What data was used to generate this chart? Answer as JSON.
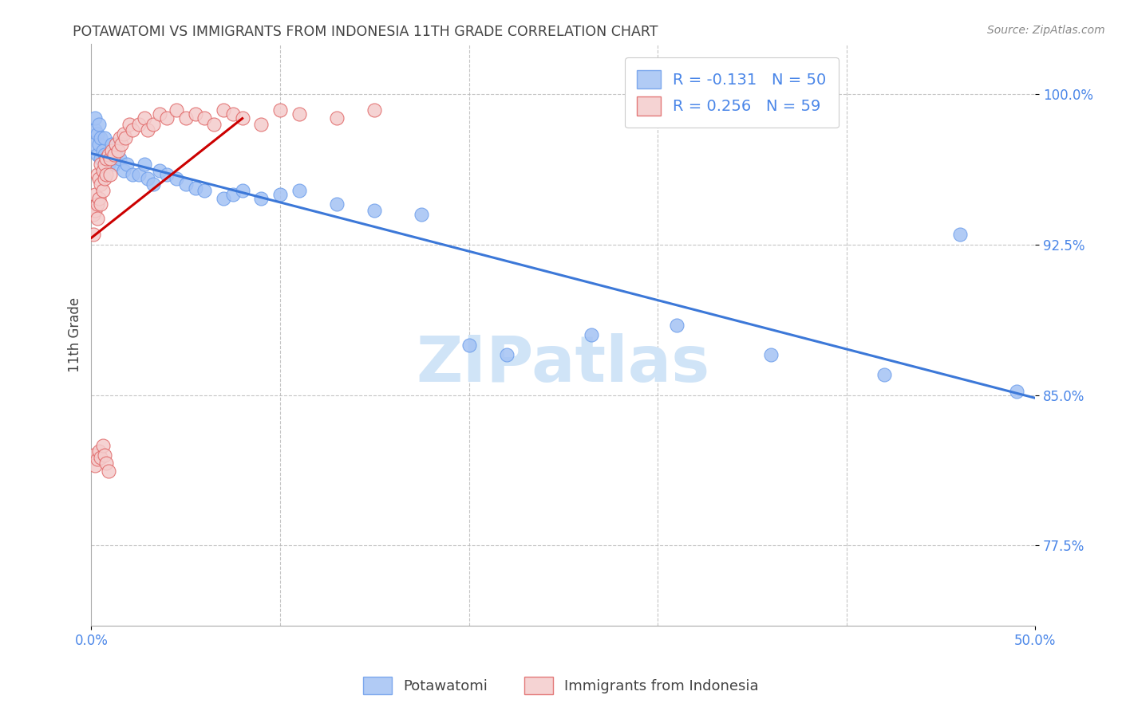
{
  "title": "POTAWATOMI VS IMMIGRANTS FROM INDONESIA 11TH GRADE CORRELATION CHART",
  "source": "Source: ZipAtlas.com",
  "ylabel": "11th Grade",
  "x_min": 0.0,
  "x_max": 0.5,
  "y_min": 0.735,
  "y_max": 1.025,
  "y_ticks": [
    0.775,
    0.85,
    0.925,
    1.0
  ],
  "y_tick_labels": [
    "77.5%",
    "85.0%",
    "92.5%",
    "100.0%"
  ],
  "x_ticks": [
    0.0,
    0.5
  ],
  "x_tick_labels": [
    "0.0%",
    "50.0%"
  ],
  "legend_labels": [
    "Potawatomi",
    "Immigrants from Indonesia"
  ],
  "legend_R": [
    "-0.131",
    "0.256"
  ],
  "legend_N": [
    "50",
    "59"
  ],
  "blue_color": "#a4c2f4",
  "pink_color": "#f4cccc",
  "blue_edge_color": "#6d9eeb",
  "pink_edge_color": "#e06666",
  "blue_line_color": "#3c78d8",
  "pink_line_color": "#cc0000",
  "background_color": "#ffffff",
  "grid_color": "#b7b7b7",
  "legend_text_color": "#4a86e8",
  "title_color": "#434343",
  "watermark_color": "#d0e4f7",
  "blue_scatter_x": [
    0.001,
    0.002,
    0.002,
    0.003,
    0.003,
    0.004,
    0.004,
    0.005,
    0.005,
    0.006,
    0.006,
    0.007,
    0.007,
    0.008,
    0.009,
    0.01,
    0.011,
    0.012,
    0.013,
    0.015,
    0.017,
    0.019,
    0.022,
    0.025,
    0.028,
    0.03,
    0.033,
    0.036,
    0.04,
    0.045,
    0.05,
    0.055,
    0.06,
    0.07,
    0.075,
    0.08,
    0.09,
    0.1,
    0.11,
    0.13,
    0.15,
    0.175,
    0.2,
    0.22,
    0.265,
    0.31,
    0.36,
    0.42,
    0.46,
    0.49
  ],
  "blue_scatter_y": [
    0.975,
    0.982,
    0.988,
    0.98,
    0.97,
    0.985,
    0.975,
    0.978,
    0.968,
    0.972,
    0.96,
    0.97,
    0.978,
    0.968,
    0.965,
    0.968,
    0.975,
    0.965,
    0.97,
    0.968,
    0.962,
    0.965,
    0.96,
    0.96,
    0.965,
    0.958,
    0.955,
    0.962,
    0.96,
    0.958,
    0.955,
    0.953,
    0.952,
    0.948,
    0.95,
    0.952,
    0.948,
    0.95,
    0.952,
    0.945,
    0.942,
    0.94,
    0.875,
    0.87,
    0.88,
    0.885,
    0.87,
    0.86,
    0.93,
    0.852
  ],
  "pink_scatter_x": [
    0.001,
    0.001,
    0.002,
    0.002,
    0.003,
    0.003,
    0.003,
    0.004,
    0.004,
    0.005,
    0.005,
    0.005,
    0.006,
    0.006,
    0.007,
    0.007,
    0.008,
    0.008,
    0.009,
    0.01,
    0.01,
    0.011,
    0.012,
    0.013,
    0.014,
    0.015,
    0.016,
    0.017,
    0.018,
    0.02,
    0.022,
    0.025,
    0.028,
    0.03,
    0.033,
    0.036,
    0.04,
    0.045,
    0.05,
    0.055,
    0.06,
    0.065,
    0.07,
    0.075,
    0.08,
    0.09,
    0.1,
    0.11,
    0.13,
    0.15,
    0.001,
    0.002,
    0.003,
    0.004,
    0.005,
    0.006,
    0.007,
    0.008,
    0.009
  ],
  "pink_scatter_y": [
    0.94,
    0.93,
    0.95,
    0.942,
    0.96,
    0.945,
    0.938,
    0.958,
    0.948,
    0.965,
    0.955,
    0.945,
    0.962,
    0.952,
    0.965,
    0.958,
    0.968,
    0.96,
    0.97,
    0.968,
    0.96,
    0.972,
    0.97,
    0.975,
    0.972,
    0.978,
    0.975,
    0.98,
    0.978,
    0.985,
    0.982,
    0.985,
    0.988,
    0.982,
    0.985,
    0.99,
    0.988,
    0.992,
    0.988,
    0.99,
    0.988,
    0.985,
    0.992,
    0.99,
    0.988,
    0.985,
    0.992,
    0.99,
    0.988,
    0.992,
    0.82,
    0.815,
    0.818,
    0.822,
    0.819,
    0.825,
    0.82,
    0.816,
    0.812
  ]
}
